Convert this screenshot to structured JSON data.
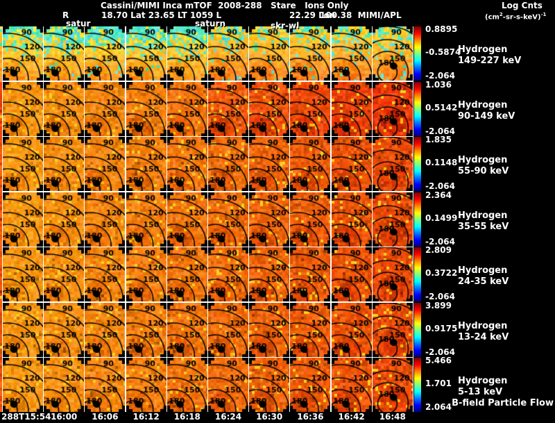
{
  "header": {
    "title": "Cassini/MIMI Inca mTOF  2008-288   Stare   Ions Only",
    "line2": {
      "r": "R",
      "mid": "18.70 Lat 23.65 LT 1059 L",
      "lon": "22.29 Lon",
      "right": "100.38  MIMI/APL"
    },
    "colorbar_title": "Log Cnts",
    "unit": {
      "p1": "(cm",
      "sup1": "2",
      "p2": "-sr-s-keV)",
      "sup2": "-1"
    }
  },
  "overlays": [
    {
      "label": "satur"
    },
    {
      "label": "saturn"
    },
    {
      "label": "skr-wl"
    }
  ],
  "rows": [
    {
      "species": "Hydrogen",
      "energy": "149-227 keV",
      "cb_top": "0.8895",
      "cb_mid": "-0.5874",
      "cb_bot": "-2.064"
    },
    {
      "species": "Hydrogen",
      "energy": "90-149 keV",
      "cb_top": "1.036",
      "cb_mid": "0.5142",
      "cb_bot": "-2.064"
    },
    {
      "species": "Hydrogen",
      "energy": "55-90 keV",
      "cb_top": "1.835",
      "cb_mid": "0.1148",
      "cb_bot": "-2.064"
    },
    {
      "species": "Hydrogen",
      "energy": "35-55 keV",
      "cb_top": "2.364",
      "cb_mid": "0.1499",
      "cb_bot": "-2.064"
    },
    {
      "species": "Hydrogen",
      "energy": "24-35 keV",
      "cb_top": "2.809",
      "cb_mid": "0.3722",
      "cb_bot": "-2.064"
    },
    {
      "species": "Hydrogen",
      "energy": "13-24 keV",
      "cb_top": "3.899",
      "cb_mid": "0.9175",
      "cb_bot": "-2.064"
    },
    {
      "species": "Hydrogen",
      "energy": "5-13 keV",
      "cb_top": "5.466",
      "cb_mid": "1.701",
      "cb_bot": "2.064"
    }
  ],
  "bfield_label": "B-field Particle Flow",
  "time_axis": [
    "288T15:54",
    "16:00",
    "16:06",
    "16:12",
    "16:18",
    "16:24",
    "16:30",
    "16:36",
    "16:42",
    "16:48"
  ],
  "contour_labels": [
    "90",
    "120",
    "150",
    "180"
  ],
  "colors": {
    "background": "#000000",
    "text": "#ffffff",
    "separator": "#ffffff",
    "jet": [
      "#7f0000",
      "#ff0000",
      "#ff7f00",
      "#ffff00",
      "#7fff7f",
      "#00ffff",
      "#007fff",
      "#0000ff",
      "#00007f"
    ]
  },
  "chart_data": {
    "type": "heatmap",
    "title": "Cassini/MIMI Inca mTOF 2008-288 Stare Ions Only",
    "subtitle": "R 18.70 Lat 23.65 LT 1059 L 22.29 Lon 100.38 MIMI/APL",
    "x": [
      "288T15:54",
      "16:00",
      "16:06",
      "16:12",
      "16:18",
      "16:24",
      "16:30",
      "16:36",
      "16:42",
      "16:48"
    ],
    "panels_per_row": 10,
    "colorbar_units": "Log Cnts (cm2-sr-s-keV)-1",
    "contour_levels": [
      90,
      120,
      150,
      180
    ],
    "legend_position": "right",
    "rows": [
      {
        "channel": "Hydrogen 149-227 keV",
        "scale_max": 0.8895,
        "scale_mid": -0.5874,
        "scale_min": -2.064
      },
      {
        "channel": "Hydrogen 90-149 keV",
        "scale_max": 1.036,
        "scale_mid": 0.5142,
        "scale_min": -2.064
      },
      {
        "channel": "Hydrogen 55-90 keV",
        "scale_max": 1.835,
        "scale_mid": 0.1148,
        "scale_min": -2.064
      },
      {
        "channel": "Hydrogen 35-55 keV",
        "scale_max": 2.364,
        "scale_mid": 0.1499,
        "scale_min": -2.064
      },
      {
        "channel": "Hydrogen 24-35 keV",
        "scale_max": 2.809,
        "scale_mid": 0.3722,
        "scale_min": -2.064
      },
      {
        "channel": "Hydrogen 13-24 keV",
        "scale_max": 3.899,
        "scale_mid": 0.9175,
        "scale_min": -2.064
      },
      {
        "channel": "Hydrogen 5-13 keV",
        "scale_max": 5.466,
        "scale_mid": 1.701,
        "scale_min": 2.064
      }
    ],
    "annotations": [
      "satur",
      "saturn",
      "skr-wl",
      "B-field Particle Flow"
    ]
  }
}
